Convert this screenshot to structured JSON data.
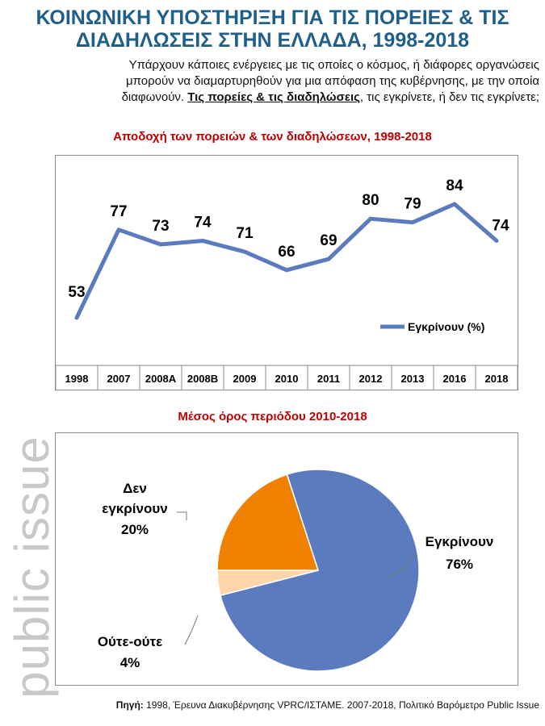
{
  "header": {
    "title_line1": "ΚΟΙΝΩΝΙΚΗ ΥΠΟΣΤΗΡΙΞΗ ΓΙΑ ΤΙΣ ΠΟΡΕΙΕΣ & ΤΙΣ",
    "title_line2": "ΔΙΑΔΗΛΩΣΕΙΣ ΣΤΗΝ ΕΛΛΑΔΑ, 1998-2018",
    "intro_line1": "Υπάρχουν κάποιες ενέργειες με τις οποίες ο κόσμος, ή διάφορες οργανώσεις",
    "intro_line2": "μπορούν να διαμαρτυρηθούν για μια απόφαση της κυβέρνησης, με την οποία",
    "intro_line3_start": "διαφωνούν.",
    "intro_line3_emph": "Τις πορείες & τις διαδηλώσεις",
    "intro_line3_end": ",  τις εγκρίνετε, ή δεν τις εγκρίνετε;"
  },
  "watermark": "public issue",
  "source": {
    "label": "Πηγή:",
    "text": " 1998, Έρευνα Διακυβέρνησης VPRC/ΙΣΤΑΜΕ. 2007-2018, Πολιτικό Βαρόμετρο Public Issue"
  },
  "colors": {
    "title": "#1f5f8b",
    "section_title": "#c00000",
    "line": "#5b7bbf",
    "pie_approve": "#5b7bbf",
    "pie_disapprove": "#f08000",
    "pie_neutral": "#fcd5a8"
  },
  "chart_data": [
    {
      "type": "line",
      "title": "Αποδοχή  των πορειών & των διαδηλώσεων,  1998-2018",
      "categories": [
        "1998",
        "2007",
        "2008A",
        "2008B",
        "2009",
        "2010",
        "2011",
        "2012",
        "2013",
        "2016",
        "2018"
      ],
      "series": [
        {
          "name": "Εγκρίνουν (%)",
          "values": [
            53,
            77,
            73,
            74,
            71,
            66,
            69,
            80,
            79,
            84,
            74
          ]
        }
      ],
      "ylim": [
        40,
        95
      ],
      "grid": false,
      "legend": "bottom-right",
      "data_labels": true
    },
    {
      "type": "pie",
      "title": "Μέσος όρος περιόδου 2010-2018",
      "slices": [
        {
          "label_line1": "Εγκρίνουν",
          "label_line2": "",
          "value_label": "76%",
          "value": 76
        },
        {
          "label_line1": "Ούτε-ούτε",
          "label_line2": "",
          "value_label": "4%",
          "value": 4
        },
        {
          "label_line1": "Δεν",
          "label_line2": "εγκρίνουν",
          "value_label": "20%",
          "value": 20
        }
      ]
    }
  ]
}
